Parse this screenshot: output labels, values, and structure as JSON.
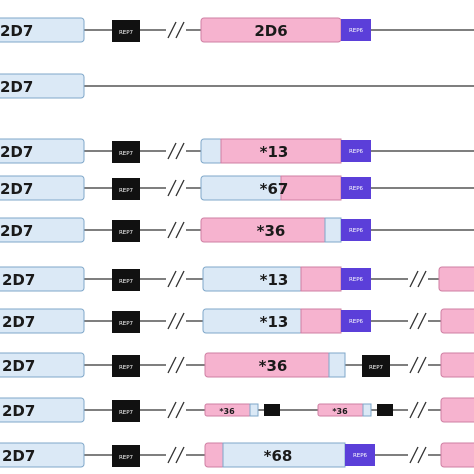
{
  "colors": {
    "blue_box": "#dbe9f6",
    "blue_edge": "#7fa7c9",
    "pink_box": "#f6b3cf",
    "pink_edge": "#cf7fa3",
    "rep6": "#5b3fd9",
    "rep7": "#111111",
    "line": "#333333"
  },
  "rows": [
    {
      "lead": "2D7",
      "rep7": "REP7",
      "gene": "2D6",
      "rep6": "REP6",
      "variant": "reference"
    },
    {
      "lead": "2D7",
      "variant": "deletion"
    },
    {
      "lead": "2D7",
      "rep7": "REP7",
      "gene": "*13",
      "rep6": "REP6",
      "variant": "hybrid-13"
    },
    {
      "lead": "2D7",
      "rep7": "REP7",
      "gene": "*67",
      "rep6": "REP6",
      "variant": "hybrid-67"
    },
    {
      "lead": "2D7",
      "rep7": "REP7",
      "gene": "*36",
      "rep6": "REP6",
      "variant": "hybrid-36"
    },
    {
      "lead": "2D7",
      "rep7": "REP7",
      "gene": "*13",
      "rep6": "REP6",
      "variant": "tandem-13a"
    },
    {
      "lead": "2D7",
      "rep7": "REP7",
      "gene": "*13",
      "rep6": "REP6",
      "variant": "tandem-13b"
    },
    {
      "lead": "2D7",
      "rep7": "REP7",
      "gene": "*36",
      "rep7b": "REP7",
      "variant": "tandem-36"
    },
    {
      "lead": "2D7",
      "rep7": "REP7",
      "gene": "*36",
      "gene2": "*36",
      "variant": "double-36"
    },
    {
      "lead": "2D7",
      "rep7": "REP7",
      "gene": "*68",
      "rep6": "REP6",
      "variant": "hybrid-68"
    }
  ]
}
